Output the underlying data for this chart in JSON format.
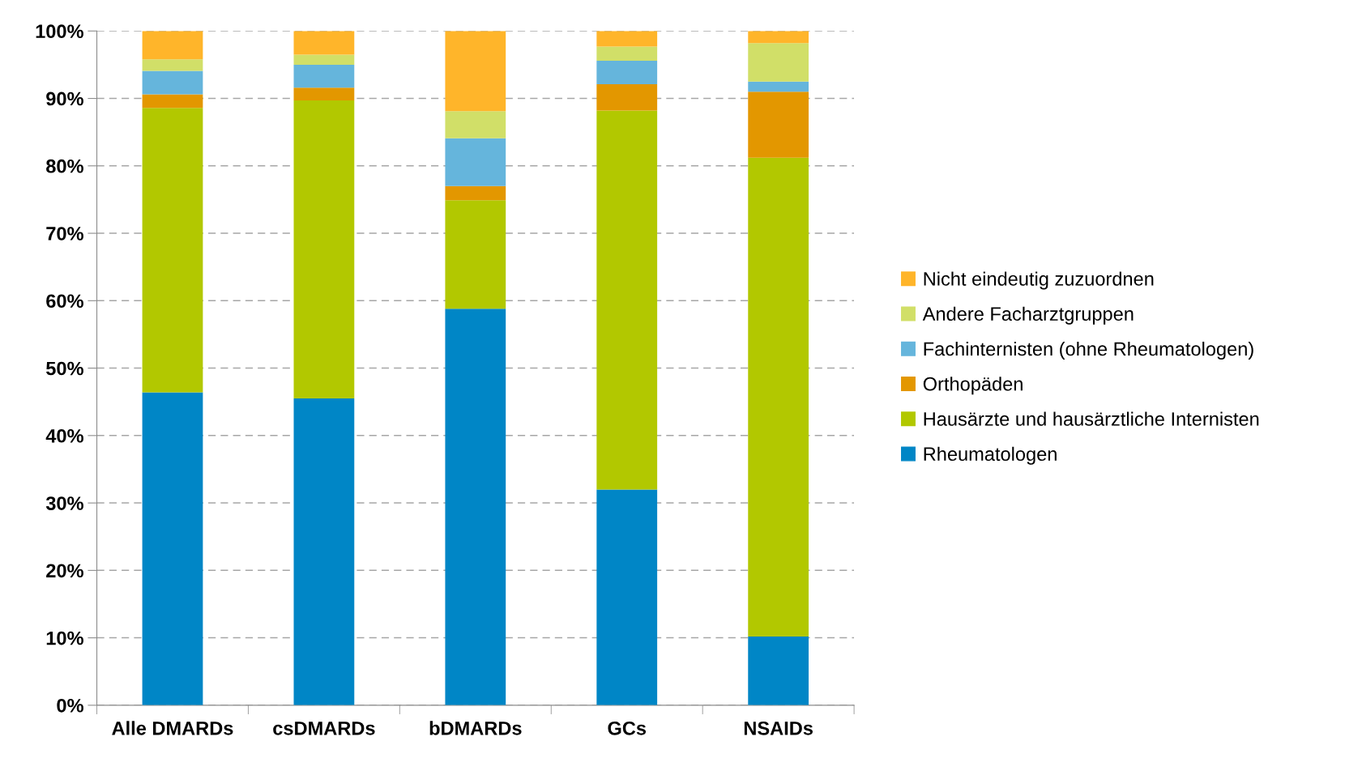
{
  "chart_data": {
    "type": "bar",
    "stacked": true,
    "categories": [
      "Alle DMARDs",
      "csDMARDs",
      "bDMARDs",
      "GCs",
      "NSAIDs"
    ],
    "series": [
      {
        "name": "Rheumatologen",
        "color": "#0086c6",
        "values": [
          46.4,
          45.5,
          58.8,
          32.0,
          10.2
        ]
      },
      {
        "name": "Hausärzte und hausärztliche Internisten",
        "color": "#b2c800",
        "values": [
          42.2,
          44.2,
          16.1,
          56.2,
          71.0
        ]
      },
      {
        "name": "Orthopäden",
        "color": "#e39700",
        "values": [
          2.0,
          1.9,
          2.1,
          3.9,
          9.8
        ]
      },
      {
        "name": "Fachinternisten (ohne Rheumatologen)",
        "color": "#65b5dc",
        "values": [
          3.5,
          3.4,
          7.1,
          3.5,
          1.5
        ]
      },
      {
        "name": "Andere Facharztgruppen",
        "color": "#d1df68",
        "values": [
          1.7,
          1.5,
          4.0,
          2.1,
          5.7
        ]
      },
      {
        "name": "Nicht eindeutig zuzuordnen",
        "color": "#ffb52a",
        "values": [
          4.2,
          3.5,
          11.9,
          2.3,
          1.8
        ]
      }
    ],
    "ylim": [
      0,
      100
    ],
    "yticks": [
      {
        "value": 0,
        "label": "0%"
      },
      {
        "value": 10,
        "label": "10%"
      },
      {
        "value": 20,
        "label": "20%"
      },
      {
        "value": 30,
        "label": "30%"
      },
      {
        "value": 40,
        "label": "40%"
      },
      {
        "value": 50,
        "label": "50%"
      },
      {
        "value": 60,
        "label": "60%"
      },
      {
        "value": 70,
        "label": "70%"
      },
      {
        "value": 80,
        "label": "80%"
      },
      {
        "value": 90,
        "label": "90%"
      },
      {
        "value": 100,
        "label": "100%"
      }
    ],
    "grid": "y",
    "legend": "right"
  }
}
